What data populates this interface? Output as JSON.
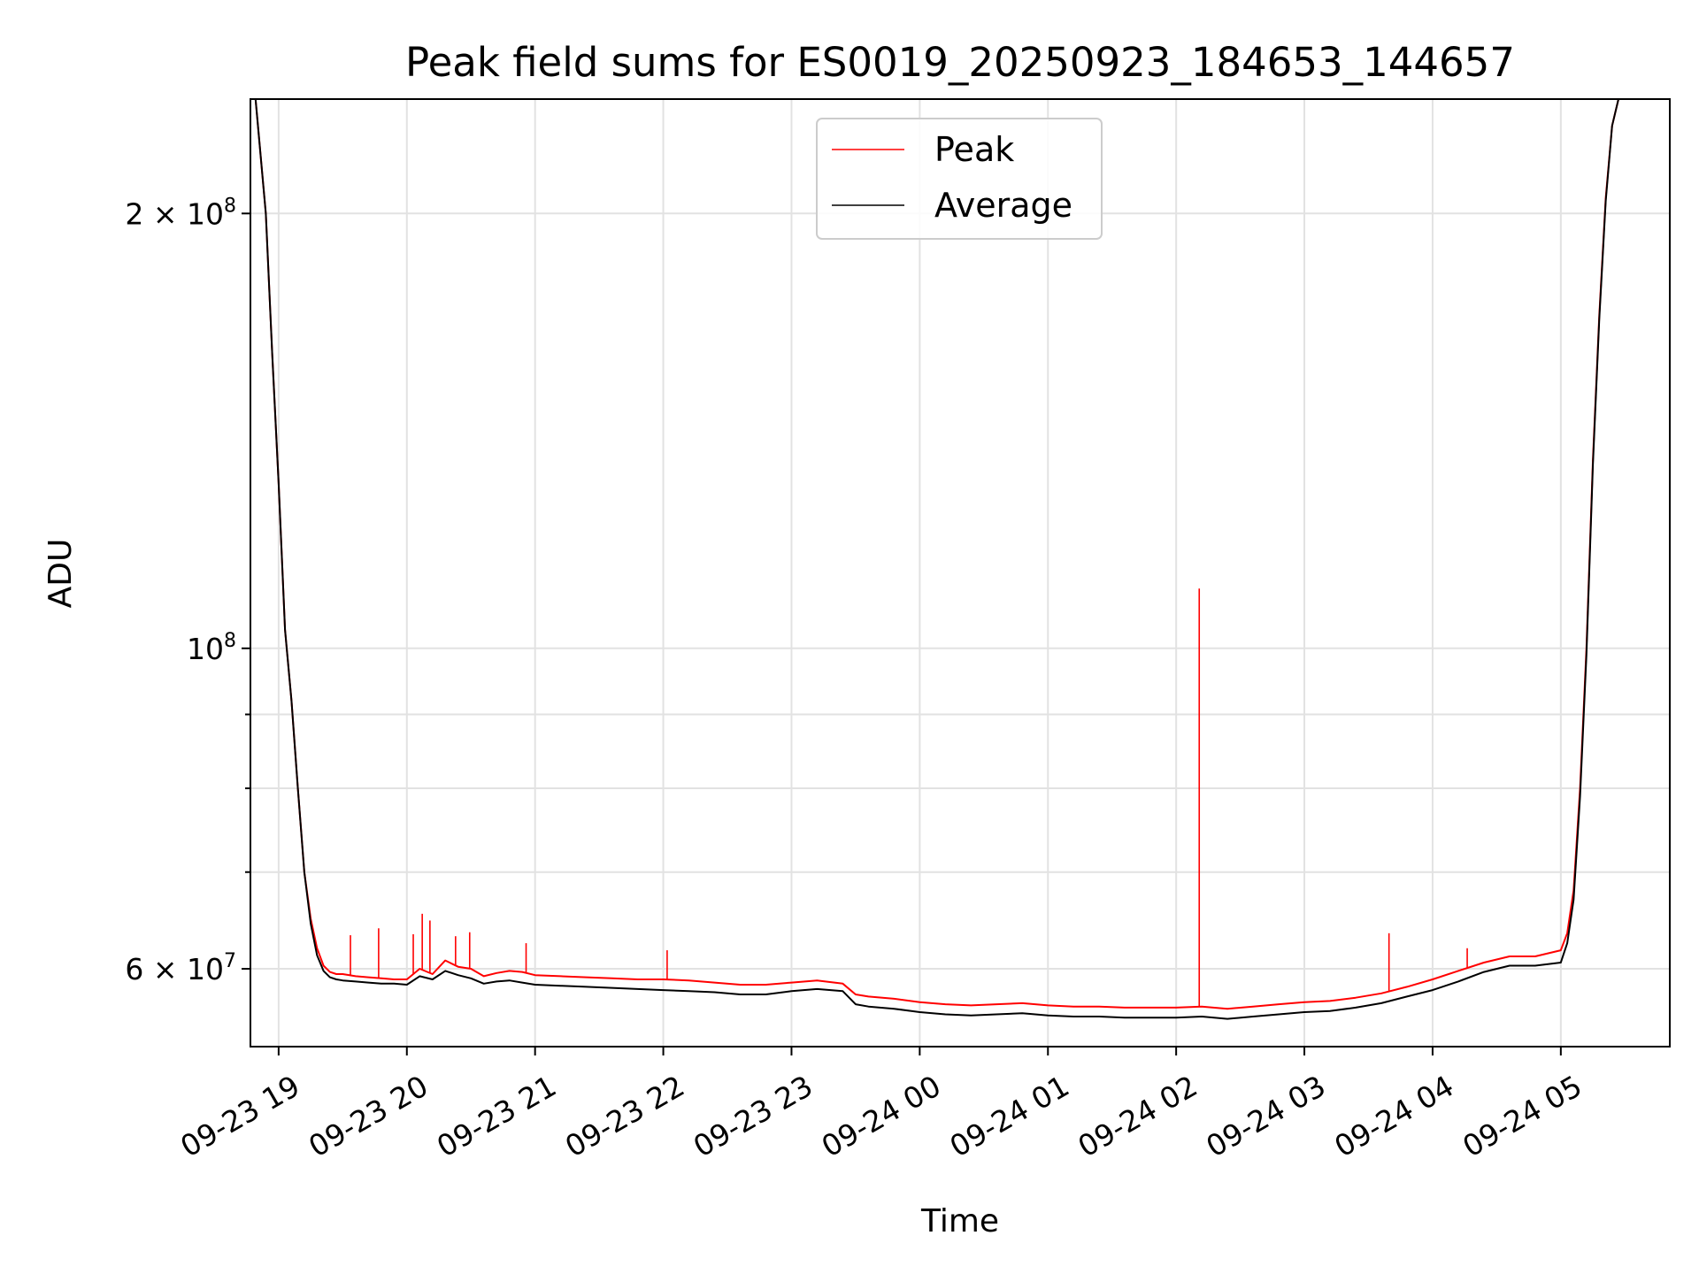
{
  "chart_data": {
    "type": "line",
    "title": "Peak field sums for ES0019_20250923_184653_144657",
    "xlabel": "Time",
    "ylabel": "ADU",
    "yscale": "log",
    "xlim": [
      18.78,
      29.85
    ],
    "ylim": [
      53000000,
      240000000
    ],
    "x_ticks": [
      {
        "value": 19,
        "label": "09-23 19"
      },
      {
        "value": 20,
        "label": "09-23 20"
      },
      {
        "value": 21,
        "label": "09-23 21"
      },
      {
        "value": 22,
        "label": "09-23 22"
      },
      {
        "value": 23,
        "label": "09-23 23"
      },
      {
        "value": 24,
        "label": "09-24 00"
      },
      {
        "value": 25,
        "label": "09-24 01"
      },
      {
        "value": 26,
        "label": "09-24 02"
      },
      {
        "value": 27,
        "label": "09-24 03"
      },
      {
        "value": 28,
        "label": "09-24 04"
      },
      {
        "value": 29,
        "label": "09-24 05"
      }
    ],
    "y_major_ticks": [
      {
        "value": 60000000,
        "mantissa": "6 × 10",
        "exponent": "7"
      },
      {
        "value": 100000000,
        "mantissa": "10",
        "exponent": "8"
      },
      {
        "value": 200000000,
        "mantissa": "2 × 10",
        "exponent": "8"
      }
    ],
    "y_minor_ticks": [
      70000000,
      80000000,
      90000000
    ],
    "legend": {
      "position": "upper center",
      "entries": [
        "Peak",
        "Average"
      ]
    },
    "series": [
      {
        "name": "Peak",
        "color": "#ff0000",
        "x": [
          18.82,
          18.9,
          18.95,
          19.0,
          19.05,
          19.1,
          19.15,
          19.2,
          19.25,
          19.3,
          19.35,
          19.4,
          19.45,
          19.5,
          19.6,
          19.7,
          19.8,
          19.9,
          20.0,
          20.1,
          20.2,
          20.3,
          20.4,
          20.5,
          20.6,
          20.7,
          20.8,
          20.9,
          21.0,
          21.2,
          21.4,
          21.6,
          21.8,
          22.0,
          22.2,
          22.4,
          22.6,
          22.8,
          23.0,
          23.2,
          23.4,
          23.5,
          23.6,
          23.8,
          24.0,
          24.2,
          24.4,
          24.6,
          24.8,
          25.0,
          25.2,
          25.4,
          25.6,
          25.8,
          26.0,
          26.2,
          26.4,
          26.6,
          26.8,
          27.0,
          27.2,
          27.4,
          27.6,
          27.8,
          28.0,
          28.2,
          28.4,
          28.6,
          28.8,
          29.0,
          29.05,
          29.1,
          29.15,
          29.2,
          29.25,
          29.3,
          29.35,
          29.4,
          29.45,
          29.5,
          29.55
        ],
        "values": [
          240000000,
          200000000,
          160000000,
          130000000,
          103000000,
          92000000,
          80000000,
          70000000,
          65000000,
          62000000,
          60300000,
          59700000,
          59500000,
          59500000,
          59300000,
          59200000,
          59100000,
          59000000,
          59000000,
          60000000,
          59500000,
          60800000,
          60200000,
          60000000,
          59300000,
          59600000,
          59800000,
          59700000,
          59400000,
          59300000,
          59200000,
          59100000,
          59000000,
          59000000,
          58900000,
          58700000,
          58500000,
          58500000,
          58700000,
          58900000,
          58600000,
          57600000,
          57400000,
          57200000,
          56900000,
          56700000,
          56600000,
          56700000,
          56800000,
          56600000,
          56500000,
          56500000,
          56400000,
          56400000,
          56400000,
          56500000,
          56300000,
          56500000,
          56700000,
          56900000,
          57000000,
          57300000,
          57700000,
          58300000,
          59000000,
          59800000,
          60600000,
          61200000,
          61200000,
          61800000,
          63500000,
          68000000,
          80000000,
          100000000,
          135000000,
          170000000,
          205000000,
          230000000,
          240000000,
          240000000,
          240000000
        ]
      },
      {
        "name": "Average",
        "color": "#000000",
        "x": [
          18.82,
          18.9,
          18.95,
          19.0,
          19.05,
          19.1,
          19.15,
          19.2,
          19.25,
          19.3,
          19.35,
          19.4,
          19.45,
          19.5,
          19.6,
          19.7,
          19.8,
          19.9,
          20.0,
          20.1,
          20.2,
          20.3,
          20.4,
          20.5,
          20.6,
          20.7,
          20.8,
          20.9,
          21.0,
          21.2,
          21.4,
          21.6,
          21.8,
          22.0,
          22.2,
          22.4,
          22.6,
          22.8,
          23.0,
          23.2,
          23.4,
          23.5,
          23.6,
          23.8,
          24.0,
          24.2,
          24.4,
          24.6,
          24.8,
          25.0,
          25.2,
          25.4,
          25.6,
          25.8,
          26.0,
          26.2,
          26.4,
          26.6,
          26.8,
          27.0,
          27.2,
          27.4,
          27.6,
          27.8,
          28.0,
          28.2,
          28.4,
          28.6,
          28.8,
          29.0,
          29.05,
          29.1,
          29.15,
          29.2,
          29.25,
          29.3,
          29.35,
          29.4,
          29.45,
          29.5,
          29.55
        ],
        "values": [
          240000000,
          200000000,
          160000000,
          130000000,
          103000000,
          92000000,
          80000000,
          70000000,
          64500000,
          61300000,
          59800000,
          59200000,
          59000000,
          58900000,
          58800000,
          58700000,
          58600000,
          58600000,
          58500000,
          59300000,
          59000000,
          59800000,
          59400000,
          59100000,
          58600000,
          58800000,
          58900000,
          58700000,
          58500000,
          58400000,
          58300000,
          58200000,
          58100000,
          58000000,
          57900000,
          57800000,
          57600000,
          57600000,
          57900000,
          58100000,
          57900000,
          56700000,
          56500000,
          56300000,
          56000000,
          55800000,
          55700000,
          55800000,
          55900000,
          55700000,
          55600000,
          55600000,
          55500000,
          55500000,
          55500000,
          55600000,
          55400000,
          55600000,
          55800000,
          56000000,
          56100000,
          56400000,
          56800000,
          57400000,
          58000000,
          58800000,
          59700000,
          60300000,
          60300000,
          60600000,
          62500000,
          67000000,
          79000000,
          99000000,
          134000000,
          169000000,
          204000000,
          230000000,
          240000000,
          240000000,
          240000000
        ]
      }
    ],
    "spikes": [
      {
        "series": "Peak",
        "x": 19.56,
        "value": 63300000
      },
      {
        "series": "Peak",
        "x": 19.78,
        "value": 64000000
      },
      {
        "series": "Peak",
        "x": 20.05,
        "value": 63400000
      },
      {
        "series": "Peak",
        "x": 20.12,
        "value": 65500000
      },
      {
        "series": "Peak",
        "x": 20.18,
        "value": 64800000
      },
      {
        "series": "Peak",
        "x": 20.38,
        "value": 63200000
      },
      {
        "series": "Peak",
        "x": 20.49,
        "value": 63600000
      },
      {
        "series": "Peak",
        "x": 20.93,
        "value": 62500000
      },
      {
        "series": "Peak",
        "x": 22.03,
        "value": 61800000
      },
      {
        "series": "Peak",
        "x": 26.18,
        "value": 110000000
      },
      {
        "series": "Peak",
        "x": 27.66,
        "value": 63500000
      },
      {
        "series": "Peak",
        "x": 28.27,
        "value": 62000000
      }
    ]
  }
}
